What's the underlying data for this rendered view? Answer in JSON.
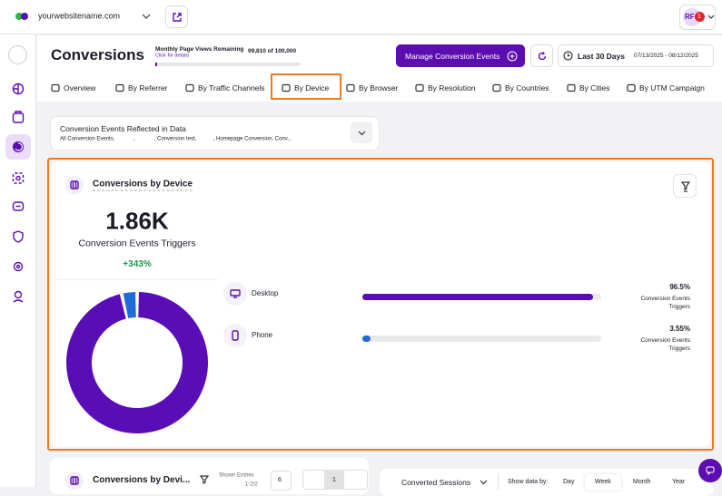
{
  "header": {
    "site": "yourwebsitename.com",
    "avatar": "RF",
    "badge": "1"
  },
  "page": {
    "title": "Conversions",
    "quota_label": "Monthly Page Views Remaining",
    "quota_link": "Click for details",
    "quota_value": "99,810 of 100,000",
    "manage_button": "Manage Conversion Events",
    "range_label": "Last 30 Days",
    "range_dates": "07/13/2025 - 08/12/2025"
  },
  "tabs": [
    "Overview",
    "By Referrer",
    "By Traffic Channels",
    "By Device",
    "By Browser",
    "By Resolution",
    "By Countries",
    "By Cities",
    "By UTM Campaign"
  ],
  "filter": {
    "title": "Conversion Events Reflected in Data",
    "summary": "All Conversion Events,            ,             , Conversion test,           , Homepage Conversion, Conv..."
  },
  "card": {
    "title": "Conversions by Device",
    "total": "1.86K",
    "total_label": "Conversion Events Triggers",
    "change": "+343%",
    "devices": [
      {
        "name": "Desktop",
        "value": 96.5,
        "value_label": "96.5%",
        "unit": "Conversion Events Triggers",
        "color": "#5a0cb6"
      },
      {
        "name": "Phone",
        "value": 3.55,
        "value_label": "3.55%",
        "unit": "Conversion Events Triggers",
        "color": "#1f6cd8"
      }
    ]
  },
  "bottom": {
    "table_title": "Conversions by Devi...",
    "shown_label": "Shown Entries",
    "shown_range": "1-2/2",
    "page_size": "6",
    "page": "1",
    "metric": "Converted Sessions",
    "show_by": "Show data by:",
    "periods": [
      "Day",
      "Week",
      "Month",
      "Year"
    ]
  }
}
